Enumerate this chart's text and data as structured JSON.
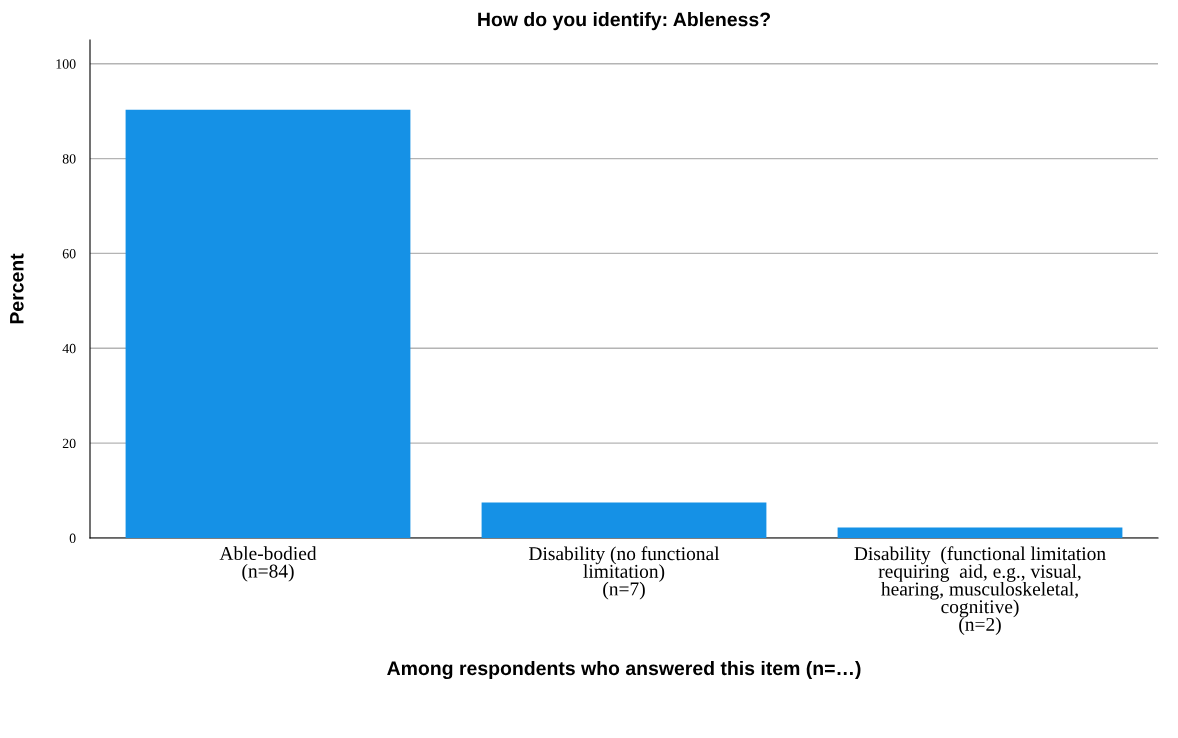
{
  "chart_data": {
    "type": "bar",
    "title": "How do you identify: Ableness?",
    "xlabel": "Among respondents who answered this item (n=…)",
    "ylabel": "Percent",
    "categories": [
      "Able-bodied\n(n=84)",
      "Disability (no functional\nlimitation)\n(n=7)",
      "Disability  (functional limitation\nrequiring  aid, e.g., visual,\nhearing, musculoskeletal,\ncognitive)\n(n=2)"
    ],
    "values": [
      90.3,
      7.5,
      2.2
    ],
    "color": "#1591e6",
    "ylim": [
      0,
      105
    ],
    "yticks": [
      0,
      20,
      40,
      60,
      80,
      100
    ],
    "grid": "y"
  }
}
